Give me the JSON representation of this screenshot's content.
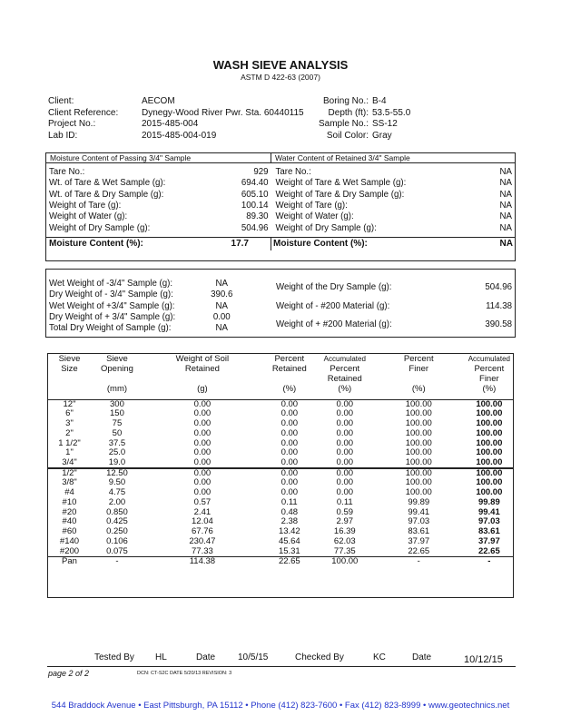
{
  "title": "WASH SIEVE ANALYSIS",
  "subtitle": "ASTM D 422-63 (2007)",
  "info": {
    "client_label": "Client:",
    "client": "AECOM",
    "ref_label": "Client Reference:",
    "ref": "Dynegy-Wood River Pwr. Sta. 60440115",
    "project_label": "Project No.:",
    "project": "2015-485-004",
    "lab_label": "Lab ID:",
    "lab": "2015-485-004-019",
    "boring_label": "Boring No.:",
    "boring": "B-4",
    "depth_label": "Depth (ft):",
    "depth": "53.5-55.0",
    "sample_label": "Sample No.:",
    "sample": "SS-12",
    "color_label": "Soil Color:",
    "color": "Gray"
  },
  "moisture": {
    "left_header": "Moisture Content of Passing  3/4\"  Sample",
    "right_header": "Water Content of Retained  3/4\"  Sample",
    "left_rows": [
      [
        "Tare No.:",
        "929"
      ],
      [
        "Wt. of Tare & Wet Sample (g):",
        "694.40"
      ],
      [
        "Wt. of Tare & Dry Sample (g):",
        "605.10"
      ],
      [
        "Weight of Tare (g):",
        "100.14"
      ],
      [
        "Weight of Water (g):",
        "89.30"
      ],
      [
        "Weight of Dry Sample (g):",
        "504.96"
      ]
    ],
    "right_rows": [
      [
        "Tare No.:",
        "NA"
      ],
      [
        "Weight of Tare & Wet Sample (g):",
        "NA"
      ],
      [
        "Weight of Tare & Dry Sample (g):",
        "NA"
      ],
      [
        "Weight of Tare (g):",
        "NA"
      ],
      [
        "Weight of Water (g):",
        "NA"
      ],
      [
        "Weight of Dry Sample (g):",
        "NA"
      ]
    ],
    "left_mc_label": "Moisture Content (%):",
    "left_mc": "17.7",
    "right_mc_label": "Moisture Content (%):",
    "right_mc": "NA"
  },
  "weights": {
    "left": [
      [
        "Wet Weight of -3/4\" Sample (g):",
        "NA"
      ],
      [
        "Dry Weight of - 3/4\" Sample (g):",
        "390.6"
      ],
      [
        "Wet Weight of +3/4\" Sample (g):",
        "NA"
      ],
      [
        "Dry Weight of + 3/4\" Sample (g):",
        "0.00"
      ],
      [
        "Total Dry Weight of Sample (g):",
        "NA"
      ]
    ],
    "right": [
      [
        "Weight of the Dry Sample (g):",
        "504.96"
      ],
      [
        "Weight of  - #200 Material (g):",
        "114.38"
      ],
      [
        "Weight of  + #200 Material (g):",
        "390.58"
      ]
    ]
  },
  "sieve": {
    "headers": [
      [
        "Sieve",
        "Size",
        ""
      ],
      [
        "Sieve",
        "Opening",
        "(mm)"
      ],
      [
        "Weight of Soil",
        "Retained",
        "(g)"
      ],
      [
        "Percent",
        "Retained",
        "(%)"
      ],
      [
        "Accumulated",
        "Percent",
        "Retained",
        "(%)"
      ],
      [
        "Percent",
        "Finer",
        "(%)"
      ],
      [
        "Accumulated",
        "Percent",
        "Finer",
        "(%)"
      ]
    ],
    "rows": [
      [
        "12\"",
        "300",
        "0.00",
        "0.00",
        "0.00",
        "100.00",
        "100.00"
      ],
      [
        "6\"",
        "150",
        "0.00",
        "0.00",
        "0.00",
        "100.00",
        "100.00"
      ],
      [
        "3\"",
        "75",
        "0.00",
        "0.00",
        "0.00",
        "100.00",
        "100.00"
      ],
      [
        "2\"",
        "50",
        "0.00",
        "0.00",
        "0.00",
        "100.00",
        "100.00"
      ],
      [
        "1 1/2\"",
        "37.5",
        "0.00",
        "0.00",
        "0.00",
        "100.00",
        "100.00"
      ],
      [
        "1\"",
        "25.0",
        "0.00",
        "0.00",
        "0.00",
        "100.00",
        "100.00"
      ],
      [
        "3/4\"",
        "19.0",
        "0.00",
        "0.00",
        "0.00",
        "100.00",
        "100.00"
      ],
      [
        "1/2\"",
        "12.50",
        "0.00",
        "0.00",
        "0.00",
        "100.00",
        "100.00"
      ],
      [
        "3/8\"",
        "9.50",
        "0.00",
        "0.00",
        "0.00",
        "100.00",
        "100.00"
      ],
      [
        "#4",
        "4.75",
        "0.00",
        "0.00",
        "0.00",
        "100.00",
        "100.00"
      ],
      [
        "#10",
        "2.00",
        "0.57",
        "0.11",
        "0.11",
        "99.89",
        "99.89"
      ],
      [
        "#20",
        "0.850",
        "2.41",
        "0.48",
        "0.59",
        "99.41",
        "99.41"
      ],
      [
        "#40",
        "0.425",
        "12.04",
        "2.38",
        "2.97",
        "97.03",
        "97.03"
      ],
      [
        "#60",
        "0.250",
        "67.76",
        "13.42",
        "16.39",
        "83.61",
        "83.61"
      ],
      [
        "#140",
        "0.106",
        "230.47",
        "45.64",
        "62.03",
        "37.97",
        "37.97"
      ],
      [
        "#200",
        "0.075",
        "77.33",
        "15.31",
        "77.35",
        "22.65",
        "22.65"
      ]
    ],
    "pan": [
      "Pan",
      "-",
      "114.38",
      "22.65",
      "100.00",
      "-",
      "-"
    ]
  },
  "footer": {
    "tested_label": "Tested By",
    "tested": "HL",
    "date_label": "Date",
    "date1": "10/5/15",
    "checked_label": "Checked By",
    "checked": "KC",
    "date2_label": "Date",
    "date2": "10/12/15",
    "page": "page 2 of 2",
    "doc": "DCN: CT-S2C DATE 5/20/13   REVISION: 3",
    "address": "544 Braddock Avenue  •  East Pittsburgh, PA  15112  •  Phone  (412) 823-7600  •  Fax (412) 823-8999  •  www.geotechnics.net"
  }
}
